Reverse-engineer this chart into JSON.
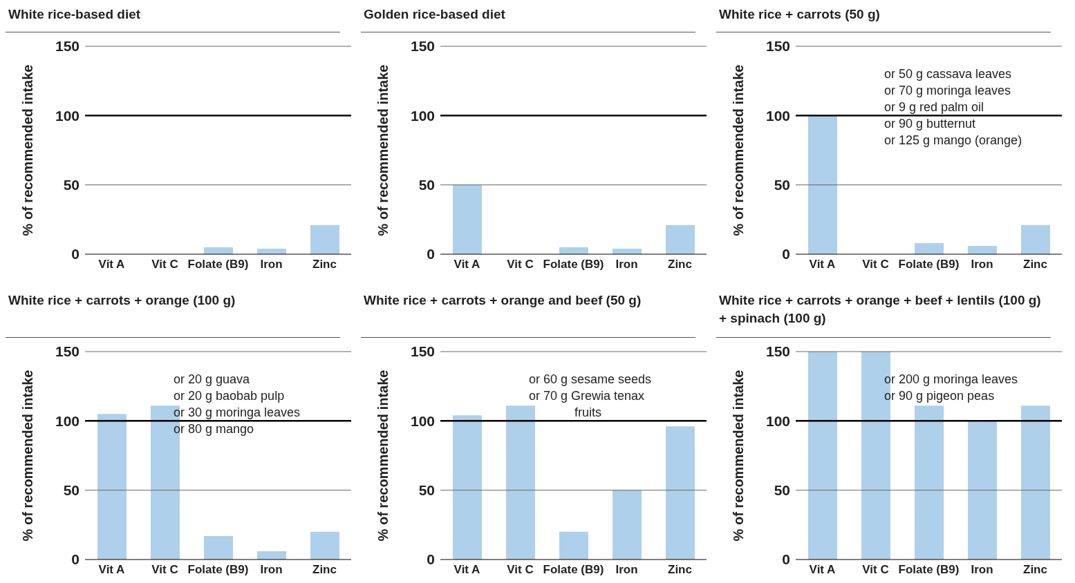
{
  "chart_data": [
    {
      "type": "bar",
      "title": "White rice-based diet",
      "ylabel": "% of recommended intake",
      "categories": [
        "Vit A",
        "Vit C",
        "Folate (B9)",
        "Iron",
        "Zinc"
      ],
      "values": [
        0,
        0,
        5,
        4,
        21
      ],
      "color": "#aed0ea",
      "ylim": [
        0,
        150
      ],
      "yticks": [
        0,
        50,
        100,
        150
      ],
      "ref_lines": [
        {
          "axis": "y",
          "value": 50,
          "color": "#666666"
        },
        {
          "axis": "y",
          "value": 100,
          "color": "#000000"
        },
        {
          "axis": "y",
          "value": 150,
          "color": "#666666"
        }
      ]
    },
    {
      "type": "bar",
      "title": "Golden rice-based diet",
      "ylabel": "% of recommended intake",
      "categories": [
        "Vit A",
        "Vit C",
        "Folate (B9)",
        "Iron",
        "Zinc"
      ],
      "values": [
        50,
        0,
        5,
        4,
        21
      ],
      "color": "#aed0ea",
      "ylim": [
        0,
        150
      ],
      "yticks": [
        0,
        50,
        100,
        150
      ],
      "ref_lines": [
        {
          "axis": "y",
          "value": 50,
          "color": "#666666"
        },
        {
          "axis": "y",
          "value": 100,
          "color": "#000000"
        },
        {
          "axis": "y",
          "value": 150,
          "color": "#666666"
        }
      ]
    },
    {
      "type": "bar",
      "title": "White rice + carrots (50 g)",
      "ylabel": "% of recommended intake",
      "categories": [
        "Vit A",
        "Vit C",
        "Folate (B9)",
        "Iron",
        "Zinc"
      ],
      "values": [
        100,
        0,
        8,
        6,
        21
      ],
      "color": "#aed0ea",
      "ylim": [
        0,
        150
      ],
      "yticks": [
        0,
        50,
        100,
        150
      ],
      "ref_lines": [
        {
          "axis": "y",
          "value": 50,
          "color": "#666666"
        },
        {
          "axis": "y",
          "value": 100,
          "color": "#000000"
        },
        {
          "axis": "y",
          "value": 150,
          "color": "#666666"
        }
      ],
      "annotations": [
        "or 50 g cassava leaves",
        "or 70 g moringa leaves",
        "or 9 g red palm oil",
        "or 90 g butternut",
        "or 125 g mango (orange)"
      ]
    },
    {
      "type": "bar",
      "title": "White rice + carrots + orange (100 g)",
      "ylabel": "% of recommended intake",
      "categories": [
        "Vit A",
        "Vit C",
        "Folate (B9)",
        "Iron",
        "Zinc"
      ],
      "values": [
        105,
        111,
        17,
        6,
        20
      ],
      "color": "#aed0ea",
      "ylim": [
        0,
        150
      ],
      "yticks": [
        0,
        50,
        100,
        150
      ],
      "ref_lines": [
        {
          "axis": "y",
          "value": 50,
          "color": "#666666"
        },
        {
          "axis": "y",
          "value": 100,
          "color": "#000000"
        },
        {
          "axis": "y",
          "value": 150,
          "color": "#666666"
        }
      ],
      "annotations": [
        "or 20 g guava",
        "or 20 g baobab pulp",
        "or 30 g moringa leaves",
        "or 80 g mango"
      ]
    },
    {
      "type": "bar",
      "title": "White rice + carrots + orange and beef (50 g)",
      "ylabel": "% of recommended intake",
      "categories": [
        "Vit A",
        "Vit C",
        "Folate (B9)",
        "Iron",
        "Zinc"
      ],
      "values": [
        104,
        111,
        20,
        50,
        96
      ],
      "color": "#aed0ea",
      "ylim": [
        0,
        150
      ],
      "yticks": [
        0,
        50,
        100,
        150
      ],
      "ref_lines": [
        {
          "axis": "y",
          "value": 50,
          "color": "#666666"
        },
        {
          "axis": "y",
          "value": 100,
          "color": "#000000"
        },
        {
          "axis": "y",
          "value": 150,
          "color": "#666666"
        }
      ],
      "annotations": [
        "or 60 g sesame seeds",
        "or 70 g Grewia tenax",
        "fruits"
      ]
    },
    {
      "type": "bar",
      "title": "White rice + carrots + orange + beef + lentils (100 g) + spinach (100 g)",
      "ylabel": "% of recommended intake",
      "categories": [
        "Vit A",
        "Vit C",
        "Folate (B9)",
        "Iron",
        "Zinc"
      ],
      "values": [
        150,
        150,
        111,
        100,
        111
      ],
      "color": "#aed0ea",
      "ylim": [
        0,
        150
      ],
      "yticks": [
        0,
        50,
        100,
        150
      ],
      "ref_lines": [
        {
          "axis": "y",
          "value": 50,
          "color": "#666666"
        },
        {
          "axis": "y",
          "value": 100,
          "color": "#000000"
        },
        {
          "axis": "y",
          "value": 150,
          "color": "#666666"
        }
      ],
      "annotations": [
        "or 200 g moringa leaves",
        "or 90 g pigeon peas"
      ]
    }
  ]
}
